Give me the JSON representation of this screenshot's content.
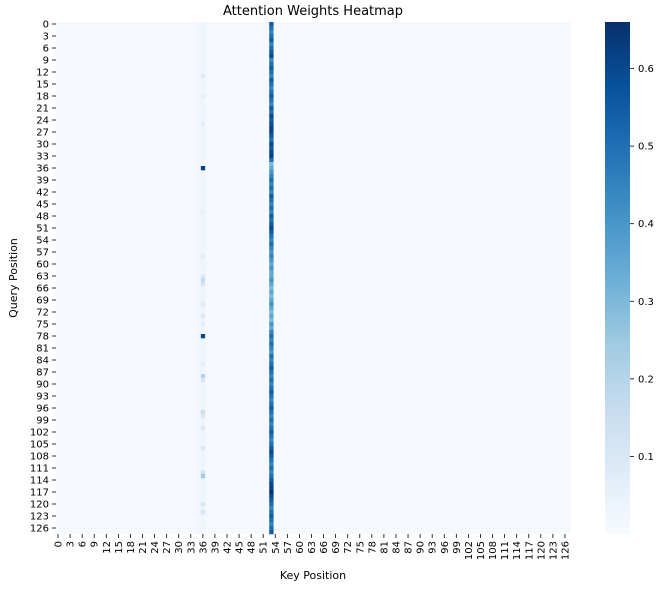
{
  "chart_data": {
    "type": "heatmap",
    "title": "Attention Weights Heatmap",
    "xlabel": "Key Position",
    "ylabel": "Query Position",
    "rows": 128,
    "cols": 128,
    "x_tick_labels": [
      "0",
      "3",
      "6",
      "9",
      "12",
      "15",
      "18",
      "21",
      "24",
      "27",
      "30",
      "33",
      "36",
      "39",
      "42",
      "45",
      "48",
      "51",
      "54",
      "57",
      "60",
      "63",
      "66",
      "69",
      "72",
      "75",
      "78",
      "81",
      "84",
      "87",
      "90",
      "93",
      "96",
      "99",
      "102",
      "105",
      "108",
      "111",
      "114",
      "117",
      "120",
      "123",
      "126"
    ],
    "y_tick_labels": [
      "0",
      "3",
      "6",
      "9",
      "12",
      "15",
      "18",
      "21",
      "24",
      "27",
      "30",
      "33",
      "36",
      "39",
      "42",
      "45",
      "48",
      "51",
      "54",
      "57",
      "60",
      "63",
      "66",
      "69",
      "72",
      "75",
      "78",
      "81",
      "84",
      "87",
      "90",
      "93",
      "96",
      "99",
      "102",
      "105",
      "108",
      "111",
      "114",
      "117",
      "120",
      "123",
      "126"
    ],
    "colorbar": {
      "colormap": "Blues",
      "min": 0,
      "max": 0.66,
      "ticks": [
        0.1,
        0.2,
        0.3,
        0.4,
        0.5,
        0.6
      ],
      "tick_labels": [
        "0.1",
        "0.2",
        "0.3",
        "0.4",
        "0.5",
        "0.6"
      ]
    },
    "background_value": 0.005,
    "key_column_weights": {
      "35": 0.025,
      "36": 0.03,
      "53": 0.45
    },
    "column_53_values": [
      0.55,
      0.5,
      0.45,
      0.5,
      0.55,
      0.45,
      0.5,
      0.55,
      0.6,
      0.45,
      0.5,
      0.55,
      0.5,
      0.45,
      0.55,
      0.5,
      0.45,
      0.5,
      0.55,
      0.5,
      0.45,
      0.55,
      0.5,
      0.6,
      0.55,
      0.58,
      0.62,
      0.6,
      0.55,
      0.5,
      0.6,
      0.55,
      0.6,
      0.62,
      0.5,
      0.3,
      0.35,
      0.4,
      0.45,
      0.5,
      0.45,
      0.5,
      0.45,
      0.55,
      0.5,
      0.45,
      0.5,
      0.45,
      0.55,
      0.5,
      0.55,
      0.6,
      0.55,
      0.5,
      0.45,
      0.5,
      0.45,
      0.4,
      0.45,
      0.4,
      0.35,
      0.4,
      0.35,
      0.35,
      0.4,
      0.35,
      0.3,
      0.35,
      0.3,
      0.35,
      0.4,
      0.35,
      0.3,
      0.35,
      0.3,
      0.4,
      0.35,
      0.45,
      0.5,
      0.45,
      0.5,
      0.45,
      0.4,
      0.5,
      0.45,
      0.5,
      0.55,
      0.5,
      0.45,
      0.5,
      0.45,
      0.5,
      0.55,
      0.5,
      0.45,
      0.5,
      0.55,
      0.5,
      0.45,
      0.5,
      0.45,
      0.5,
      0.55,
      0.5,
      0.45,
      0.5,
      0.55,
      0.6,
      0.55,
      0.5,
      0.45,
      0.5,
      0.45,
      0.5,
      0.55,
      0.6,
      0.62,
      0.66,
      0.6,
      0.55,
      0.5,
      0.45,
      0.5,
      0.55,
      0.5,
      0.45,
      0.5,
      0.55
    ],
    "hotspots": [
      {
        "row": 36,
        "col": 36,
        "value": 0.62
      },
      {
        "row": 78,
        "col": 36,
        "value": 0.6
      },
      {
        "row": 13,
        "col": 36,
        "value": 0.08
      },
      {
        "row": 18,
        "col": 36,
        "value": 0.06
      },
      {
        "row": 25,
        "col": 36,
        "value": 0.07
      },
      {
        "row": 47,
        "col": 36,
        "value": 0.05
      },
      {
        "row": 58,
        "col": 36,
        "value": 0.07
      },
      {
        "row": 63,
        "col": 36,
        "value": 0.1
      },
      {
        "row": 64,
        "col": 36,
        "value": 0.16
      },
      {
        "row": 65,
        "col": 36,
        "value": 0.12
      },
      {
        "row": 70,
        "col": 36,
        "value": 0.08
      },
      {
        "row": 73,
        "col": 36,
        "value": 0.09
      },
      {
        "row": 75,
        "col": 36,
        "value": 0.07
      },
      {
        "row": 85,
        "col": 36,
        "value": 0.06
      },
      {
        "row": 88,
        "col": 36,
        "value": 0.2
      },
      {
        "row": 89,
        "col": 36,
        "value": 0.1
      },
      {
        "row": 97,
        "col": 36,
        "value": 0.15
      },
      {
        "row": 98,
        "col": 36,
        "value": 0.1
      },
      {
        "row": 101,
        "col": 36,
        "value": 0.09
      },
      {
        "row": 106,
        "col": 36,
        "value": 0.1
      },
      {
        "row": 112,
        "col": 36,
        "value": 0.12
      },
      {
        "row": 113,
        "col": 36,
        "value": 0.24
      },
      {
        "row": 120,
        "col": 36,
        "value": 0.1
      },
      {
        "row": 122,
        "col": 36,
        "value": 0.12
      }
    ]
  }
}
